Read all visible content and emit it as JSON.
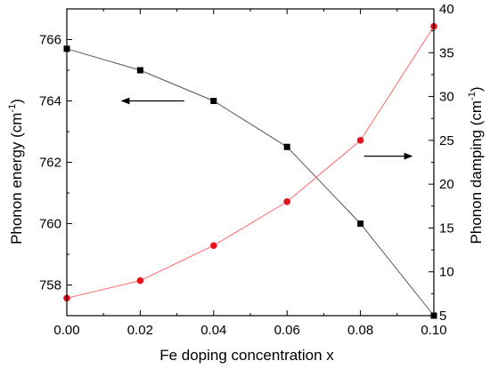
{
  "chart_data": {
    "type": "line",
    "xlabel": "Fe doping concentration x",
    "ylabel_left": "Phonon energy (cm",
    "ylabel_right": "Phonon damping (cm",
    "ylabel_sup": "-1",
    "ylabel_close": ")",
    "xlim": [
      0.0,
      0.1
    ],
    "ylim_left": [
      757,
      767
    ],
    "ylim_right": [
      5,
      40
    ],
    "x_ticks": [
      0.0,
      0.02,
      0.04,
      0.06,
      0.08,
      0.1
    ],
    "x_tick_labels": [
      "0.00",
      "0.02",
      "0.04",
      "0.06",
      "0.08",
      "0.10"
    ],
    "y_left_ticks": [
      758,
      760,
      762,
      764,
      766
    ],
    "y_left_tick_labels": [
      "758",
      "760",
      "762",
      "764",
      "766"
    ],
    "y_right_ticks": [
      5,
      10,
      15,
      20,
      25,
      30,
      35,
      40
    ],
    "y_right_tick_labels": [
      "5",
      "10",
      "15",
      "20",
      "25",
      "30",
      "35",
      "40"
    ],
    "grid": false,
    "series": [
      {
        "axis": "left",
        "marker": "square",
        "color": "#000000",
        "line_color": "#555555",
        "x": [
          0.0,
          0.02,
          0.04,
          0.06,
          0.08,
          0.1
        ],
        "values": [
          765.7,
          765.0,
          764.0,
          762.5,
          760.0,
          757.0
        ]
      },
      {
        "axis": "right",
        "marker": "circle",
        "color": "#e8141b",
        "line_color": "#ff6a6a",
        "x": [
          0.0,
          0.02,
          0.04,
          0.06,
          0.08,
          0.1
        ],
        "values": [
          7.0,
          9.0,
          13.0,
          18.0,
          25.0,
          38.0
        ]
      }
    ],
    "annotations": [
      {
        "type": "arrow",
        "direction": "left",
        "points_to": "left-axis",
        "x": [
          0.032,
          0.015
        ],
        "y_left": 764.0
      },
      {
        "type": "arrow",
        "direction": "right",
        "points_to": "right-axis",
        "x": [
          0.081,
          0.094
        ],
        "y_left": 762.2
      }
    ]
  }
}
